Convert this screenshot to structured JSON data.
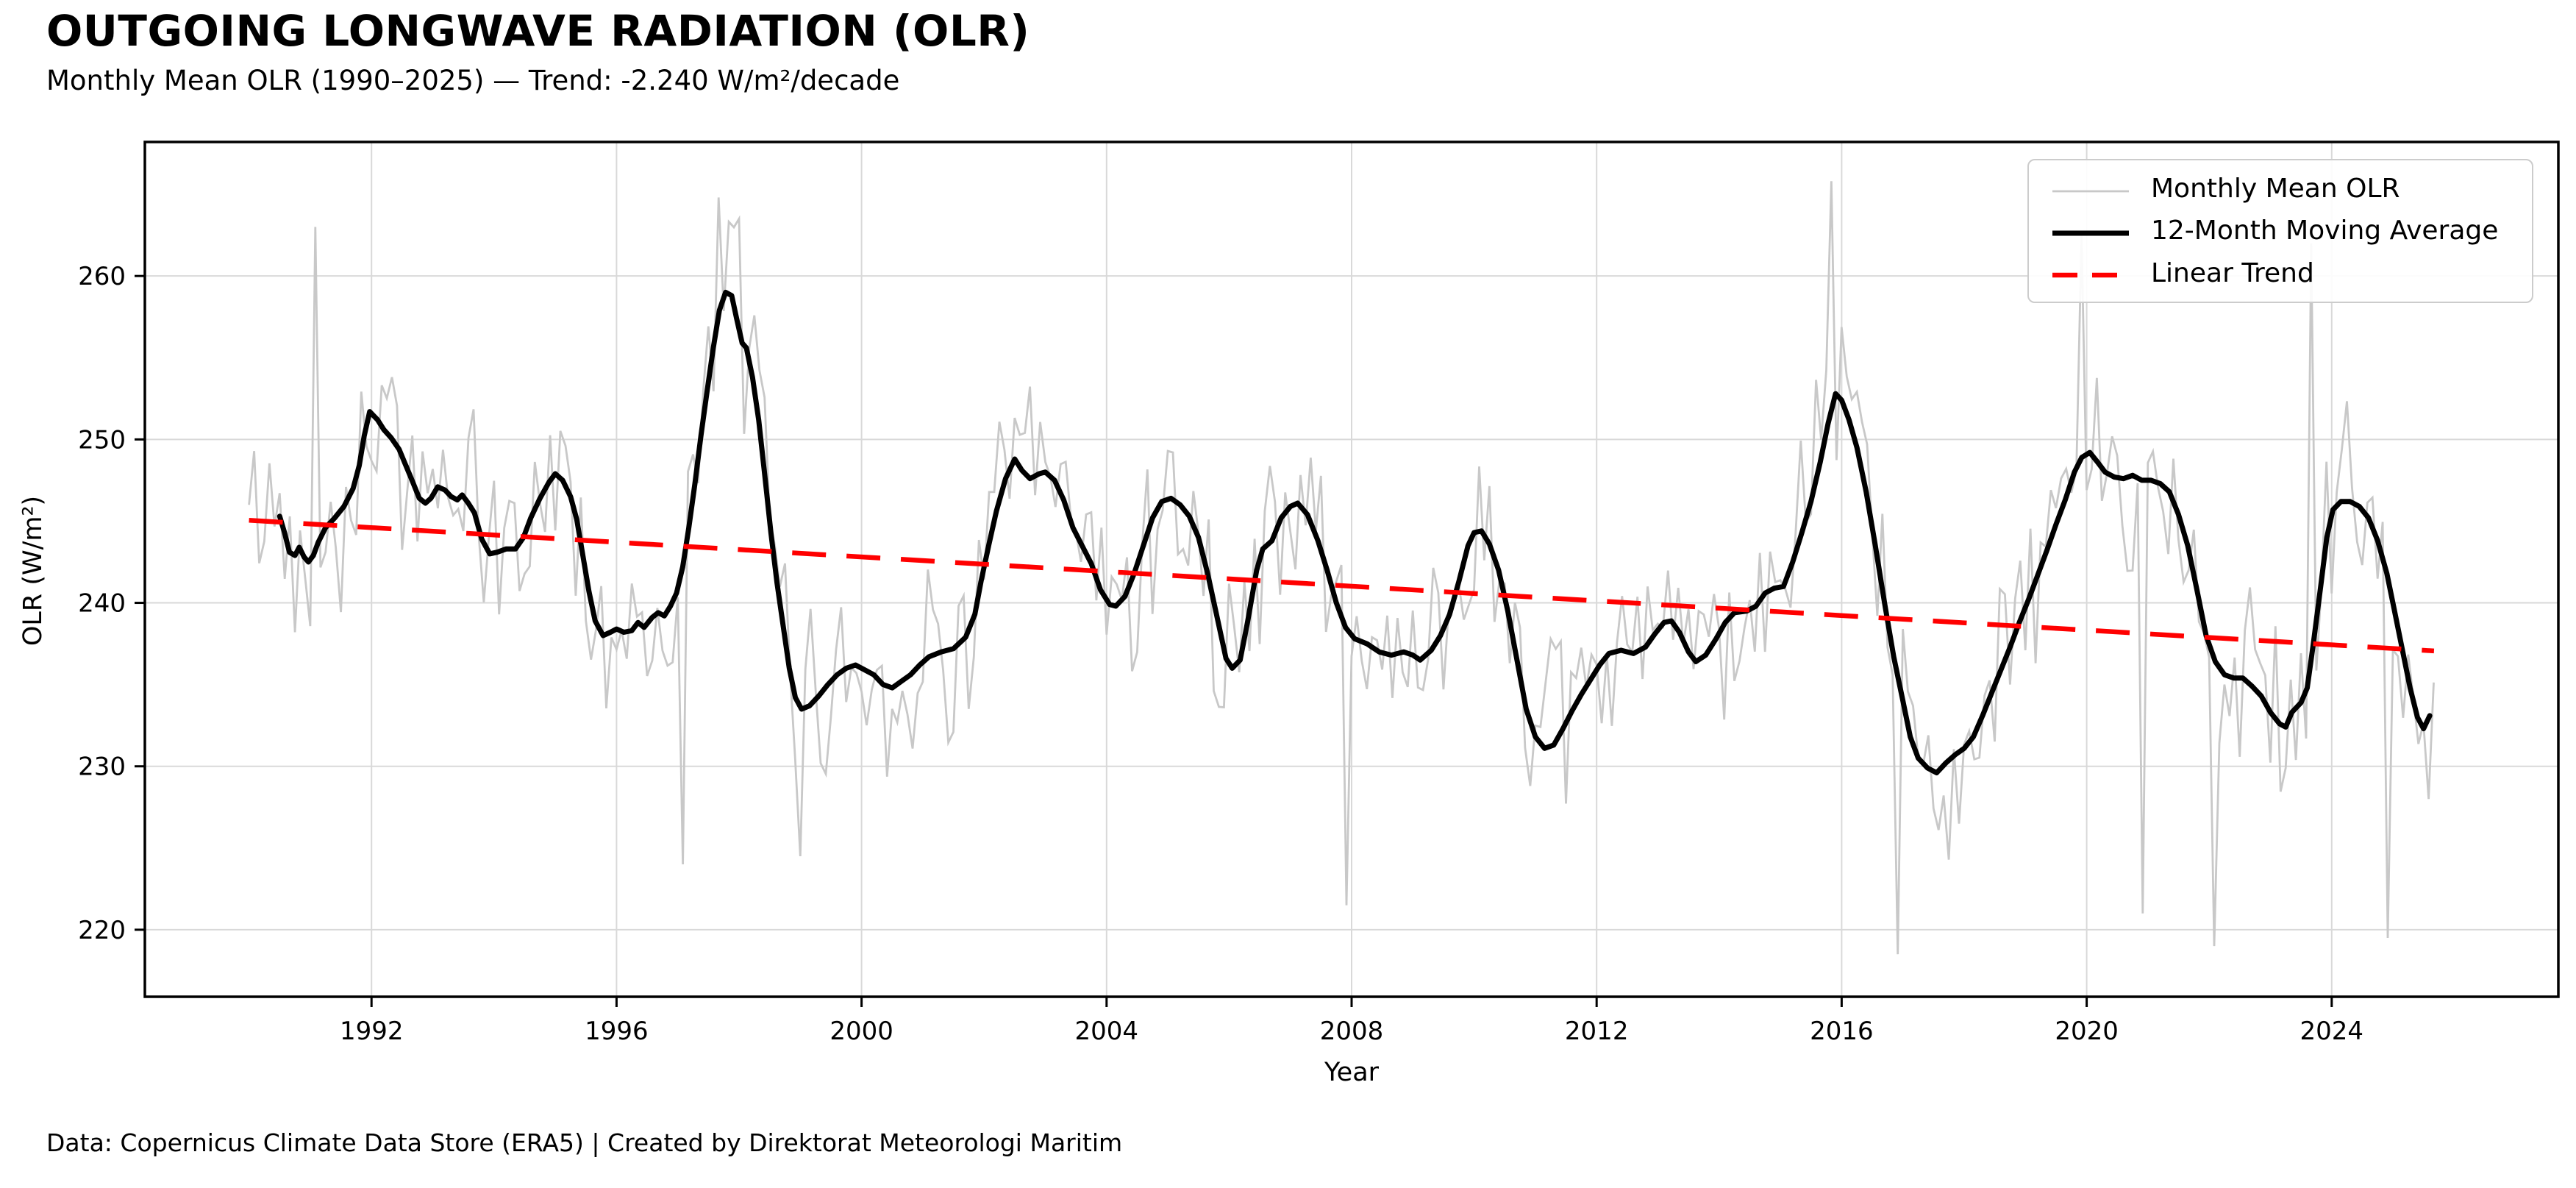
{
  "title": "OUTGOING LONGWAVE RADIATION (OLR)",
  "subtitle": "Monthly Mean OLR (1990–2025) — Trend: -2.240 W/m²/decade",
  "footer": "Data: Copernicus Climate Data Store (ERA5) | Created by Direktorat Meteorologi Maritim",
  "colors": {
    "monthly_line": "#c8c8c8",
    "moving_average_line": "#000000",
    "trend_line": "#ff0000",
    "grid": "#d9d9d9",
    "spine": "#000000",
    "legend_border": "#cccccc",
    "background": "#ffffff"
  },
  "chart_data": {
    "type": "line",
    "title": "OUTGOING LONGWAVE RADIATION (OLR)",
    "subtitle": "Monthly Mean OLR (1990–2025) — Trend: -2.240 W/m²/decade",
    "xlabel": "Year",
    "ylabel": "OLR (W/m²)",
    "xlim": [
      1988.3,
      2027.7
    ],
    "ylim": [
      215.9,
      268.2
    ],
    "x_ticks": [
      1992,
      1996,
      2000,
      2004,
      2008,
      2012,
      2016,
      2020,
      2024
    ],
    "y_ticks": [
      220,
      230,
      240,
      250,
      260
    ],
    "grid": true,
    "legend_position": "upper right",
    "trend_slope_w_m2_per_decade": -2.24,
    "series": [
      {
        "name": "Monthly Mean OLR",
        "style": "solid",
        "color": "#c8c8c8",
        "line_width": 2.8,
        "x_start": 1990.0,
        "x_end": 2025.67,
        "step_years": 0.08333,
        "generated_from": "moving_average_plus_noise",
        "noise_amplitude_w_m2": 4.6,
        "value_range": [
          218.3,
          265.8
        ],
        "visible_extremes": [
          [
            1991.08,
            263.0
          ],
          [
            1997.08,
            224.0
          ],
          [
            1997.66,
            264.8
          ],
          [
            1997.99,
            263.5
          ],
          [
            1999.0,
            224.5
          ],
          [
            2007.9,
            221.5
          ],
          [
            2015.85,
            265.8
          ],
          [
            2016.9,
            218.5
          ],
          [
            2019.9,
            262.5
          ],
          [
            2020.9,
            221.0
          ],
          [
            2022.05,
            219.0
          ],
          [
            2023.7,
            262.0
          ],
          [
            2024.95,
            219.5
          ],
          [
            2025.57,
            228.0
          ]
        ]
      },
      {
        "name": "12-Month Moving Average",
        "style": "solid",
        "color": "#000000",
        "line_width": 7,
        "points": [
          [
            1990.5,
            245.3
          ],
          [
            1990.58,
            244.3
          ],
          [
            1990.66,
            243.1
          ],
          [
            1990.75,
            242.9
          ],
          [
            1990.82,
            243.4
          ],
          [
            1990.9,
            242.8
          ],
          [
            1990.97,
            242.5
          ],
          [
            1991.05,
            242.9
          ],
          [
            1991.13,
            243.7
          ],
          [
            1991.25,
            244.6
          ],
          [
            1991.4,
            245.2
          ],
          [
            1991.55,
            245.9
          ],
          [
            1991.7,
            247.0
          ],
          [
            1991.8,
            248.4
          ],
          [
            1991.88,
            250.2
          ],
          [
            1991.97,
            251.7
          ],
          [
            1992.1,
            251.2
          ],
          [
            1992.2,
            250.6
          ],
          [
            1992.32,
            250.1
          ],
          [
            1992.45,
            249.4
          ],
          [
            1992.55,
            248.5
          ],
          [
            1992.65,
            247.6
          ],
          [
            1992.78,
            246.4
          ],
          [
            1992.88,
            246.1
          ],
          [
            1992.97,
            246.4
          ],
          [
            1993.08,
            247.1
          ],
          [
            1993.2,
            246.9
          ],
          [
            1993.3,
            246.5
          ],
          [
            1993.4,
            246.3
          ],
          [
            1993.48,
            246.6
          ],
          [
            1993.58,
            246.1
          ],
          [
            1993.68,
            245.5
          ],
          [
            1993.8,
            243.9
          ],
          [
            1993.93,
            243.0
          ],
          [
            1994.05,
            243.1
          ],
          [
            1994.2,
            243.3
          ],
          [
            1994.35,
            243.3
          ],
          [
            1994.48,
            244.0
          ],
          [
            1994.6,
            245.2
          ],
          [
            1994.75,
            246.4
          ],
          [
            1994.9,
            247.4
          ],
          [
            1995.0,
            247.9
          ],
          [
            1995.12,
            247.5
          ],
          [
            1995.25,
            246.5
          ],
          [
            1995.35,
            245.1
          ],
          [
            1995.45,
            242.9
          ],
          [
            1995.55,
            240.7
          ],
          [
            1995.65,
            238.9
          ],
          [
            1995.78,
            238.0
          ],
          [
            1995.9,
            238.2
          ],
          [
            1996.0,
            238.4
          ],
          [
            1996.12,
            238.2
          ],
          [
            1996.25,
            238.3
          ],
          [
            1996.35,
            238.8
          ],
          [
            1996.45,
            238.5
          ],
          [
            1996.58,
            239.1
          ],
          [
            1996.68,
            239.4
          ],
          [
            1996.78,
            239.2
          ],
          [
            1996.88,
            239.8
          ],
          [
            1996.98,
            240.6
          ],
          [
            1997.08,
            242.2
          ],
          [
            1997.18,
            244.6
          ],
          [
            1997.28,
            247.3
          ],
          [
            1997.38,
            250.3
          ],
          [
            1997.48,
            253.0
          ],
          [
            1997.58,
            255.6
          ],
          [
            1997.68,
            257.9
          ],
          [
            1997.78,
            259.0
          ],
          [
            1997.88,
            258.8
          ],
          [
            1997.96,
            257.4
          ],
          [
            1998.05,
            255.9
          ],
          [
            1998.12,
            255.6
          ],
          [
            1998.22,
            253.8
          ],
          [
            1998.32,
            251.2
          ],
          [
            1998.42,
            247.8
          ],
          [
            1998.52,
            244.3
          ],
          [
            1998.62,
            241.2
          ],
          [
            1998.72,
            238.6
          ],
          [
            1998.82,
            236.0
          ],
          [
            1998.92,
            234.2
          ],
          [
            1999.02,
            233.5
          ],
          [
            1999.15,
            233.7
          ],
          [
            1999.3,
            234.3
          ],
          [
            1999.45,
            235.0
          ],
          [
            1999.6,
            235.6
          ],
          [
            1999.75,
            236.0
          ],
          [
            1999.9,
            236.2
          ],
          [
            2000.05,
            235.9
          ],
          [
            2000.2,
            235.6
          ],
          [
            2000.35,
            235.0
          ],
          [
            2000.5,
            234.8
          ],
          [
            2000.65,
            235.2
          ],
          [
            2000.8,
            235.6
          ],
          [
            2000.95,
            236.2
          ],
          [
            2001.1,
            236.7
          ],
          [
            2001.3,
            237.0
          ],
          [
            2001.5,
            237.2
          ],
          [
            2001.7,
            237.9
          ],
          [
            2001.85,
            239.3
          ],
          [
            2001.95,
            241.3
          ],
          [
            2002.08,
            243.6
          ],
          [
            2002.2,
            245.6
          ],
          [
            2002.35,
            247.6
          ],
          [
            2002.5,
            248.8
          ],
          [
            2002.62,
            248.1
          ],
          [
            2002.75,
            247.6
          ],
          [
            2002.9,
            247.9
          ],
          [
            2003.0,
            248.0
          ],
          [
            2003.15,
            247.5
          ],
          [
            2003.3,
            246.3
          ],
          [
            2003.45,
            244.6
          ],
          [
            2003.6,
            243.5
          ],
          [
            2003.75,
            242.4
          ],
          [
            2003.9,
            240.8
          ],
          [
            2004.05,
            239.9
          ],
          [
            2004.15,
            239.8
          ],
          [
            2004.3,
            240.4
          ],
          [
            2004.45,
            241.8
          ],
          [
            2004.6,
            243.5
          ],
          [
            2004.75,
            245.2
          ],
          [
            2004.9,
            246.2
          ],
          [
            2005.05,
            246.4
          ],
          [
            2005.2,
            246.0
          ],
          [
            2005.35,
            245.3
          ],
          [
            2005.5,
            244.0
          ],
          [
            2005.65,
            241.8
          ],
          [
            2005.8,
            239.2
          ],
          [
            2005.95,
            236.6
          ],
          [
            2006.05,
            236.0
          ],
          [
            2006.18,
            236.5
          ],
          [
            2006.3,
            238.8
          ],
          [
            2006.45,
            242.0
          ],
          [
            2006.55,
            243.3
          ],
          [
            2006.7,
            243.8
          ],
          [
            2006.85,
            245.2
          ],
          [
            2007.0,
            245.9
          ],
          [
            2007.12,
            246.1
          ],
          [
            2007.28,
            245.4
          ],
          [
            2007.45,
            243.8
          ],
          [
            2007.6,
            242.0
          ],
          [
            2007.75,
            240.0
          ],
          [
            2007.9,
            238.5
          ],
          [
            2008.05,
            237.8
          ],
          [
            2008.25,
            237.5
          ],
          [
            2008.45,
            237.0
          ],
          [
            2008.65,
            236.8
          ],
          [
            2008.85,
            237.0
          ],
          [
            2009.0,
            236.8
          ],
          [
            2009.12,
            236.5
          ],
          [
            2009.3,
            237.1
          ],
          [
            2009.45,
            238.0
          ],
          [
            2009.6,
            239.3
          ],
          [
            2009.75,
            241.3
          ],
          [
            2009.9,
            243.5
          ],
          [
            2010.0,
            244.3
          ],
          [
            2010.12,
            244.4
          ],
          [
            2010.25,
            243.6
          ],
          [
            2010.4,
            242.0
          ],
          [
            2010.55,
            239.5
          ],
          [
            2010.7,
            236.5
          ],
          [
            2010.85,
            233.5
          ],
          [
            2011.0,
            231.8
          ],
          [
            2011.15,
            231.1
          ],
          [
            2011.3,
            231.3
          ],
          [
            2011.45,
            232.3
          ],
          [
            2011.6,
            233.4
          ],
          [
            2011.75,
            234.4
          ],
          [
            2011.9,
            235.3
          ],
          [
            2012.05,
            236.2
          ],
          [
            2012.2,
            236.9
          ],
          [
            2012.4,
            237.1
          ],
          [
            2012.6,
            236.9
          ],
          [
            2012.8,
            237.3
          ],
          [
            2012.95,
            238.1
          ],
          [
            2013.1,
            238.8
          ],
          [
            2013.22,
            238.9
          ],
          [
            2013.35,
            238.2
          ],
          [
            2013.5,
            237.0
          ],
          [
            2013.62,
            236.4
          ],
          [
            2013.78,
            236.8
          ],
          [
            2013.95,
            237.8
          ],
          [
            2014.1,
            238.8
          ],
          [
            2014.25,
            239.4
          ],
          [
            2014.45,
            239.5
          ],
          [
            2014.6,
            239.8
          ],
          [
            2014.75,
            240.6
          ],
          [
            2014.9,
            240.9
          ],
          [
            2015.05,
            241.0
          ],
          [
            2015.2,
            242.5
          ],
          [
            2015.35,
            244.3
          ],
          [
            2015.5,
            246.2
          ],
          [
            2015.65,
            248.6
          ],
          [
            2015.78,
            251.0
          ],
          [
            2015.9,
            252.8
          ],
          [
            2016.0,
            252.4
          ],
          [
            2016.12,
            251.2
          ],
          [
            2016.25,
            249.5
          ],
          [
            2016.4,
            246.8
          ],
          [
            2016.55,
            243.5
          ],
          [
            2016.7,
            240.0
          ],
          [
            2016.85,
            236.7
          ],
          [
            2017.0,
            234.0
          ],
          [
            2017.12,
            231.8
          ],
          [
            2017.25,
            230.5
          ],
          [
            2017.4,
            229.9
          ],
          [
            2017.55,
            229.6
          ],
          [
            2017.7,
            230.2
          ],
          [
            2017.85,
            230.7
          ],
          [
            2018.0,
            231.1
          ],
          [
            2018.15,
            231.8
          ],
          [
            2018.3,
            233.1
          ],
          [
            2018.45,
            234.5
          ],
          [
            2018.6,
            235.9
          ],
          [
            2018.75,
            237.3
          ],
          [
            2018.9,
            238.8
          ],
          [
            2019.05,
            240.2
          ],
          [
            2019.2,
            241.7
          ],
          [
            2019.35,
            243.2
          ],
          [
            2019.5,
            244.8
          ],
          [
            2019.65,
            246.3
          ],
          [
            2019.8,
            248.0
          ],
          [
            2019.92,
            248.9
          ],
          [
            2020.05,
            249.2
          ],
          [
            2020.18,
            248.6
          ],
          [
            2020.3,
            248.0
          ],
          [
            2020.45,
            247.7
          ],
          [
            2020.6,
            247.6
          ],
          [
            2020.75,
            247.8
          ],
          [
            2020.9,
            247.5
          ],
          [
            2021.05,
            247.5
          ],
          [
            2021.2,
            247.3
          ],
          [
            2021.35,
            246.8
          ],
          [
            2021.5,
            245.4
          ],
          [
            2021.65,
            243.5
          ],
          [
            2021.8,
            240.8
          ],
          [
            2021.95,
            238.0
          ],
          [
            2022.1,
            236.4
          ],
          [
            2022.25,
            235.6
          ],
          [
            2022.4,
            235.4
          ],
          [
            2022.55,
            235.4
          ],
          [
            2022.7,
            234.9
          ],
          [
            2022.85,
            234.3
          ],
          [
            2023.0,
            233.3
          ],
          [
            2023.15,
            232.6
          ],
          [
            2023.25,
            232.4
          ],
          [
            2023.35,
            233.3
          ],
          [
            2023.5,
            233.9
          ],
          [
            2023.6,
            234.8
          ],
          [
            2023.7,
            237.5
          ],
          [
            2023.82,
            241.0
          ],
          [
            2023.92,
            244.0
          ],
          [
            2024.02,
            245.7
          ],
          [
            2024.15,
            246.2
          ],
          [
            2024.3,
            246.2
          ],
          [
            2024.45,
            245.9
          ],
          [
            2024.6,
            245.2
          ],
          [
            2024.75,
            243.8
          ],
          [
            2024.9,
            241.8
          ],
          [
            2025.02,
            239.6
          ],
          [
            2025.15,
            237.2
          ],
          [
            2025.28,
            234.8
          ],
          [
            2025.4,
            233.0
          ],
          [
            2025.5,
            232.3
          ],
          [
            2025.6,
            233.1
          ]
        ]
      },
      {
        "name": "Linear Trend",
        "style": "dashed",
        "color": "#ff0000",
        "line_width": 6.5,
        "dash": [
          46,
          28
        ],
        "points": [
          [
            1990.0,
            245.05
          ],
          [
            2025.67,
            237.06
          ]
        ]
      }
    ]
  }
}
